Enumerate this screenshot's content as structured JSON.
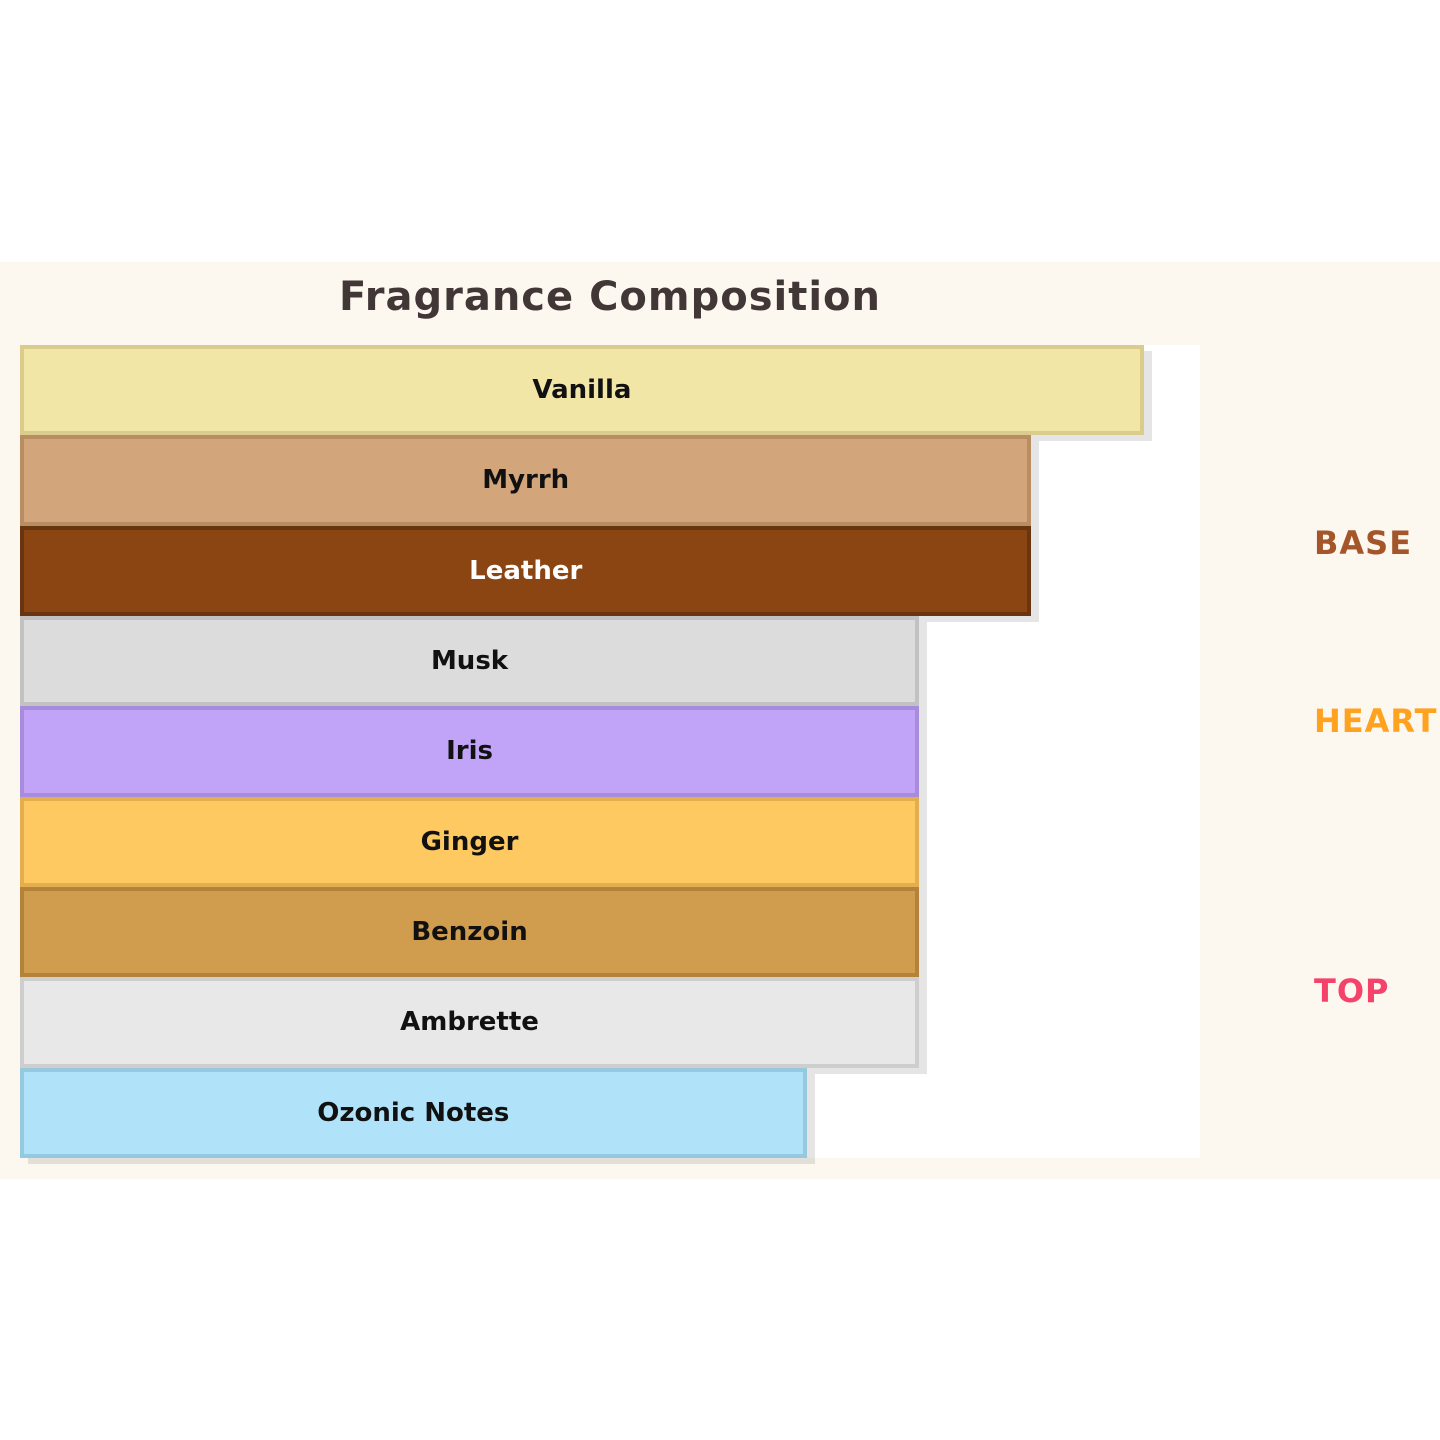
{
  "chart_data": {
    "type": "bar",
    "orientation": "horizontal",
    "title": "Fragrance Composition",
    "categories": [
      "Vanilla",
      "Myrrh",
      "Leather",
      "Musk",
      "Iris",
      "Ginger",
      "Benzoin",
      "Ambrette",
      "Ozonic Notes"
    ],
    "values": [
      10,
      9,
      9,
      8,
      8,
      8,
      8,
      8,
      7
    ],
    "xlim": [
      0,
      10.5
    ],
    "grid": false,
    "bar_styles": [
      {
        "fill": "#F2E6A6",
        "border": "#D9CC8C",
        "text": "#111111"
      },
      {
        "fill": "#D2A57A",
        "border": "#B78D61",
        "text": "#111111"
      },
      {
        "fill": "#8B4513",
        "border": "#693410",
        "text": "#FFFFFF"
      },
      {
        "fill": "#DCDCDC",
        "border": "#C2C2C2",
        "text": "#111111"
      },
      {
        "fill": "#C1A3F7",
        "border": "#A78BDD",
        "text": "#111111"
      },
      {
        "fill": "#FFC961",
        "border": "#E3AE4E",
        "text": "#111111"
      },
      {
        "fill": "#D09C4E",
        "border": "#B4833B",
        "text": "#111111"
      },
      {
        "fill": "#E8E8E8",
        "border": "#CECECE",
        "text": "#111111"
      },
      {
        "fill": "#B0E3FA",
        "border": "#95C9E0",
        "text": "#111111"
      }
    ],
    "group_labels": [
      {
        "label": "BASE",
        "color": "#A5552A",
        "notes": [
          "Vanilla",
          "Myrrh",
          "Leather"
        ]
      },
      {
        "label": "HEART",
        "color": "#FFA21F",
        "notes": [
          "Musk",
          "Iris",
          "Ginger"
        ]
      },
      {
        "label": "TOP",
        "color": "#F5426B",
        "notes": [
          "Benzoin",
          "Ambrette",
          "Ozonic Notes"
        ]
      }
    ],
    "legend_position": "right"
  },
  "figure": {
    "background_color": "#FCF7EF",
    "plot_background_color": "#FFFFFF",
    "title_color": "#423737"
  }
}
